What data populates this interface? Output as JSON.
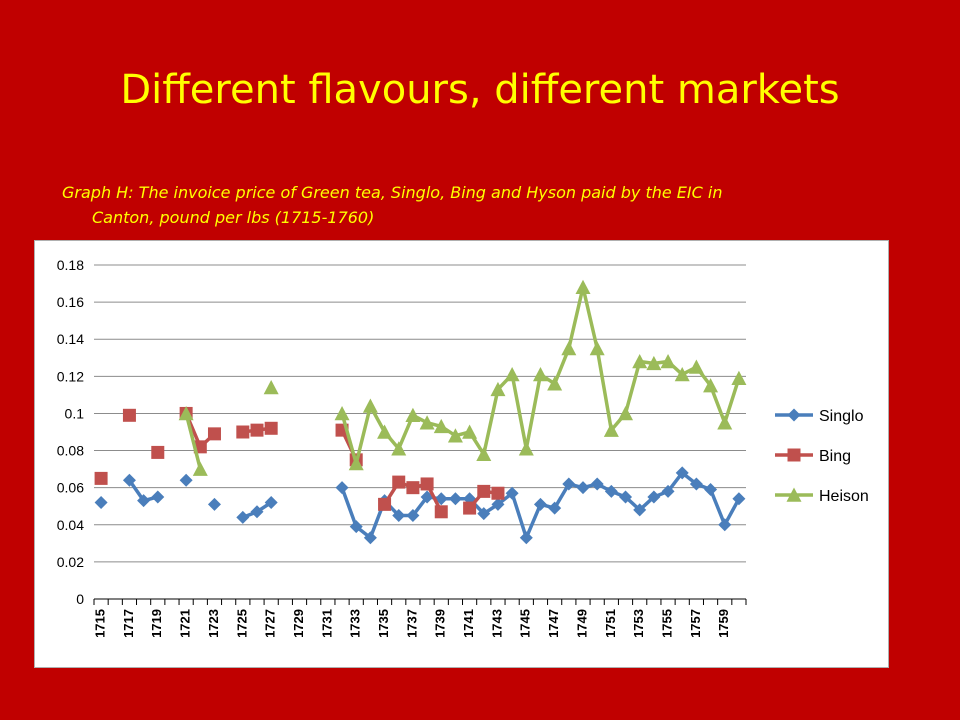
{
  "slide": {
    "title": "Different flavours, different markets",
    "caption_line1": "Graph H: The invoice price of Green tea, Singlo, Bing and Hyson paid by the EIC in",
    "caption_line2": "Canton, pound per lbs (1715-1760)"
  },
  "colors": {
    "background": "#c00000",
    "title": "#ffff00",
    "singlo": "#4a7ebb",
    "bing": "#c0504d",
    "heison": "#9bbb59",
    "grid": "#8c8c8c"
  },
  "chart_data": {
    "type": "line",
    "title": "",
    "xlabel": "",
    "ylabel": "",
    "ylim": [
      0,
      0.18
    ],
    "yticks": [
      "0",
      "0.02",
      "0.04",
      "0.06",
      "0.08",
      "0.1",
      "0.12",
      "0.14",
      "0.16",
      "0.18"
    ],
    "ytick_values": [
      0,
      0.02,
      0.04,
      0.06,
      0.08,
      0.1,
      0.12,
      0.14,
      0.16,
      0.18
    ],
    "grid": true,
    "legend_position": "right",
    "categories": [
      "1715",
      "1716",
      "1717",
      "1718",
      "1719",
      "1720",
      "1721",
      "1722",
      "1723",
      "1724",
      "1725",
      "1726",
      "1727",
      "1728",
      "1729",
      "1730",
      "1731",
      "1732",
      "1733",
      "1734",
      "1735",
      "1736",
      "1737",
      "1738",
      "1739",
      "1740",
      "1741",
      "1742",
      "1743",
      "1744",
      "1745",
      "1746",
      "1747",
      "1748",
      "1749",
      "1750",
      "1751",
      "1752",
      "1753",
      "1754",
      "1755",
      "1756",
      "1757",
      "1758",
      "1759",
      "1760"
    ],
    "tick_labels": [
      "1715",
      "1717",
      "1719",
      "1721",
      "1723",
      "1725",
      "1727",
      "1729",
      "1731",
      "1733",
      "1735",
      "1737",
      "1739",
      "1741",
      "1743",
      "1745",
      "1747",
      "1749",
      "1751",
      "1753",
      "1755",
      "1757",
      "1759"
    ],
    "series": [
      {
        "name": "Singlo",
        "marker": "diamond",
        "color": "#4a7ebb",
        "values": [
          0.052,
          null,
          0.064,
          0.053,
          0.055,
          null,
          0.064,
          null,
          0.051,
          null,
          0.044,
          0.047,
          0.052,
          null,
          null,
          null,
          null,
          0.06,
          0.039,
          0.033,
          0.053,
          0.045,
          0.045,
          0.055,
          0.054,
          0.054,
          0.054,
          0.046,
          0.051,
          0.057,
          0.033,
          0.051,
          0.049,
          0.062,
          0.06,
          0.062,
          0.058,
          0.055,
          0.048,
          0.055,
          0.058,
          0.068,
          0.062,
          0.059,
          0.04,
          0.054
        ]
      },
      {
        "name": "Bing",
        "marker": "square",
        "color": "#c0504d",
        "values": [
          0.065,
          null,
          0.099,
          null,
          0.079,
          null,
          0.1,
          0.082,
          0.089,
          null,
          0.09,
          0.091,
          0.092,
          null,
          null,
          null,
          null,
          0.091,
          0.075,
          null,
          0.051,
          0.063,
          0.06,
          0.062,
          0.047,
          null,
          0.049,
          0.058,
          0.057,
          null,
          null,
          null,
          null,
          null,
          null,
          null,
          null,
          null,
          null,
          null,
          null,
          null,
          null,
          null,
          null,
          null
        ]
      },
      {
        "name": "Heison",
        "marker": "triangle",
        "color": "#9bbb59",
        "values": [
          null,
          null,
          null,
          null,
          null,
          null,
          0.1,
          0.07,
          null,
          null,
          null,
          null,
          0.114,
          null,
          null,
          null,
          null,
          0.1,
          0.073,
          0.104,
          0.09,
          0.081,
          0.099,
          0.095,
          0.093,
          0.088,
          0.09,
          0.078,
          0.113,
          0.121,
          0.081,
          0.121,
          0.116,
          0.135,
          0.168,
          0.135,
          0.091,
          0.1,
          0.128,
          0.127,
          0.128,
          0.121,
          0.125,
          0.115,
          0.095,
          0.119
        ]
      }
    ]
  }
}
